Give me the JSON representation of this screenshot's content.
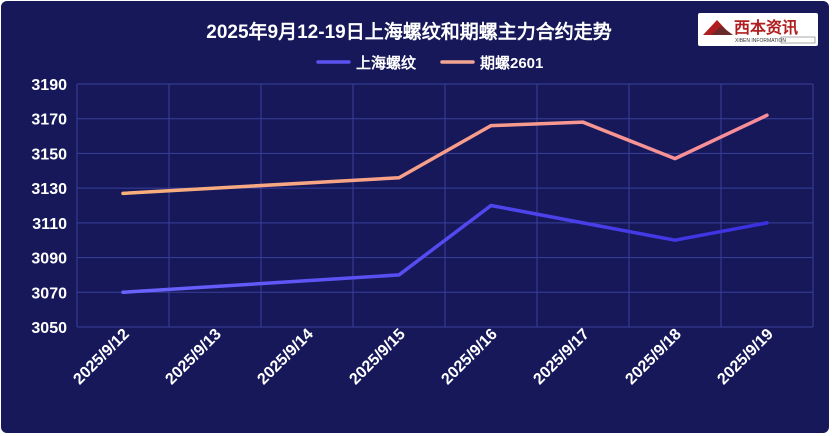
{
  "logo": {
    "name": "西本资讯",
    "subtitle": "XIBEN INFORMATION"
  },
  "colors": {
    "background": "#16185a",
    "grid": "#3a3f9a",
    "text": "#ffffff",
    "series_shanghai": "#5b52f0",
    "series_futures": "#f4a492"
  },
  "chart_data": {
    "type": "line",
    "title": "2025年9月12-19日上海螺纹和期螺主力合约走势",
    "xlabel": "",
    "ylabel": "",
    "x": [
      "2025/9/12",
      "2025/9/13",
      "2025/9/14",
      "2025/9/15",
      "2025/9/16",
      "2025/9/17",
      "2025/9/18",
      "2025/9/19"
    ],
    "ylim": [
      3050,
      3190
    ],
    "yticks": [
      3050,
      3070,
      3090,
      3110,
      3130,
      3150,
      3170,
      3190
    ],
    "grid": true,
    "legend_position": "top",
    "series": [
      {
        "name": "上海螺纹",
        "points": [
          {
            "x": "2025/9/12",
            "y": 3070
          },
          {
            "x": "2025/9/15",
            "y": 3080
          },
          {
            "x": "2025/9/16",
            "y": 3120
          },
          {
            "x": "2025/9/17",
            "y": 3110
          },
          {
            "x": "2025/9/18",
            "y": 3100
          },
          {
            "x": "2025/9/19",
            "y": 3110
          }
        ]
      },
      {
        "name": "期螺2601",
        "points": [
          {
            "x": "2025/9/12",
            "y": 3127
          },
          {
            "x": "2025/9/15",
            "y": 3136
          },
          {
            "x": "2025/9/16",
            "y": 3166
          },
          {
            "x": "2025/9/17",
            "y": 3168
          },
          {
            "x": "2025/9/18",
            "y": 3147
          },
          {
            "x": "2025/9/19",
            "y": 3172
          }
        ]
      }
    ]
  }
}
